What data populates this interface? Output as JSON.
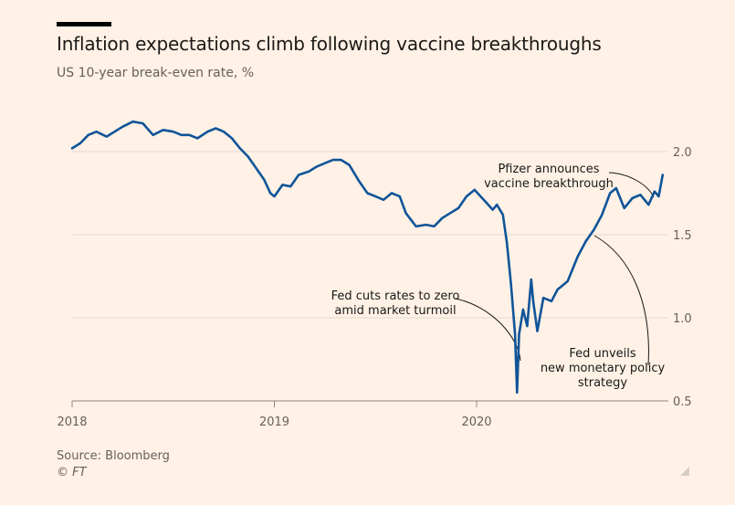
{
  "header": {
    "title": "Inflation expectations climb following vaccine breakthroughs",
    "subtitle": "US 10-year break-even rate, %"
  },
  "footer": {
    "source": "Source: Bloomberg",
    "copyright": "© FT"
  },
  "colors": {
    "background": "#fff1e5",
    "line": "#0f5499",
    "grid": "#e6d9ce",
    "text": "#66605c"
  },
  "chart_data": {
    "type": "line",
    "title": "Inflation expectations climb following vaccine breakthroughs",
    "subtitle": "US 10-year break-even rate, %",
    "xlabel": "",
    "ylabel": "",
    "ylim": [
      0.5,
      2.0
    ],
    "y_ticks": [
      "2.0",
      "1.5",
      "1.0",
      "0.5"
    ],
    "y_tick_values": [
      2.0,
      1.5,
      1.0,
      0.5
    ],
    "x_ticks": [
      "2018",
      "2019",
      "2020"
    ],
    "x_tick_values": [
      2018.0,
      2019.0,
      2020.0
    ],
    "xlim": [
      2018.0,
      2020.93
    ],
    "y_axis_side": "right",
    "grid": true,
    "series": [
      {
        "values": [
          [
            2018.0,
            2.02
          ],
          [
            2018.04,
            2.05
          ],
          [
            2018.08,
            2.1
          ],
          [
            2018.12,
            2.12
          ],
          [
            2018.17,
            2.09
          ],
          [
            2018.21,
            2.12
          ],
          [
            2018.25,
            2.15
          ],
          [
            2018.3,
            2.18
          ],
          [
            2018.35,
            2.17
          ],
          [
            2018.4,
            2.1
          ],
          [
            2018.45,
            2.13
          ],
          [
            2018.5,
            2.12
          ],
          [
            2018.54,
            2.1
          ],
          [
            2018.58,
            2.1
          ],
          [
            2018.62,
            2.08
          ],
          [
            2018.67,
            2.12
          ],
          [
            2018.71,
            2.14
          ],
          [
            2018.75,
            2.12
          ],
          [
            2018.79,
            2.08
          ],
          [
            2018.83,
            2.02
          ],
          [
            2018.87,
            1.97
          ],
          [
            2018.91,
            1.9
          ],
          [
            2018.95,
            1.83
          ],
          [
            2018.98,
            1.75
          ],
          [
            2019.0,
            1.73
          ],
          [
            2019.04,
            1.8
          ],
          [
            2019.08,
            1.79
          ],
          [
            2019.12,
            1.86
          ],
          [
            2019.17,
            1.88
          ],
          [
            2019.21,
            1.91
          ],
          [
            2019.25,
            1.93
          ],
          [
            2019.29,
            1.95
          ],
          [
            2019.33,
            1.95
          ],
          [
            2019.37,
            1.92
          ],
          [
            2019.42,
            1.82
          ],
          [
            2019.46,
            1.75
          ],
          [
            2019.5,
            1.73
          ],
          [
            2019.54,
            1.71
          ],
          [
            2019.58,
            1.75
          ],
          [
            2019.62,
            1.73
          ],
          [
            2019.65,
            1.63
          ],
          [
            2019.7,
            1.55
          ],
          [
            2019.75,
            1.56
          ],
          [
            2019.79,
            1.55
          ],
          [
            2019.83,
            1.6
          ],
          [
            2019.87,
            1.63
          ],
          [
            2019.91,
            1.66
          ],
          [
            2019.95,
            1.73
          ],
          [
            2019.99,
            1.77
          ],
          [
            2020.02,
            1.73
          ],
          [
            2020.05,
            1.69
          ],
          [
            2020.08,
            1.65
          ],
          [
            2020.1,
            1.68
          ],
          [
            2020.13,
            1.62
          ],
          [
            2020.15,
            1.45
          ],
          [
            2020.17,
            1.2
          ],
          [
            2020.19,
            0.9
          ],
          [
            2020.2,
            0.55
          ],
          [
            2020.21,
            0.9
          ],
          [
            2020.23,
            1.05
          ],
          [
            2020.25,
            0.95
          ],
          [
            2020.27,
            1.23
          ],
          [
            2020.28,
            1.1
          ],
          [
            2020.3,
            0.92
          ],
          [
            2020.33,
            1.12
          ],
          [
            2020.37,
            1.1
          ],
          [
            2020.4,
            1.17
          ],
          [
            2020.45,
            1.22
          ],
          [
            2020.5,
            1.37
          ],
          [
            2020.54,
            1.46
          ],
          [
            2020.58,
            1.53
          ],
          [
            2020.62,
            1.62
          ],
          [
            2020.66,
            1.75
          ],
          [
            2020.69,
            1.78
          ],
          [
            2020.73,
            1.66
          ],
          [
            2020.77,
            1.72
          ],
          [
            2020.81,
            1.74
          ],
          [
            2020.85,
            1.68
          ],
          [
            2020.88,
            1.76
          ],
          [
            2020.9,
            1.73
          ],
          [
            2020.92,
            1.86
          ]
        ]
      }
    ],
    "annotations": [
      {
        "lines": [
          "Pfizer announces",
          "vaccine breakthrough"
        ]
      },
      {
        "lines": [
          "Fed cuts rates to zero",
          "amid market turmoil"
        ]
      },
      {
        "lines": [
          "Fed unveils",
          "new monetary policy",
          "strategy"
        ]
      }
    ]
  }
}
